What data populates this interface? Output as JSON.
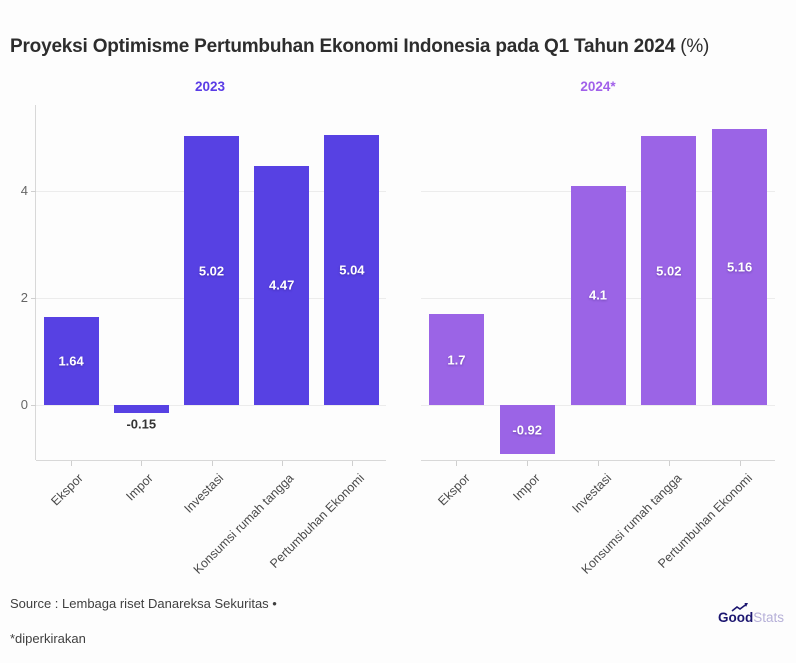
{
  "title": {
    "main": "Proyeksi Optimisme Pertumbuhan Ekonomi Indonesia pada Q1 Tahun 2024",
    "suffix": " (%)"
  },
  "source_line": "Source : Lembaga riset Danareksa Sekuritas •",
  "footnote": "*diperkirakan",
  "logo": {
    "bold": "Good",
    "light": "Stats"
  },
  "colors": {
    "bar_2023": "#5741e3",
    "bar_2024": "#9b64e6",
    "panel_title_2023": "#5a3ce6",
    "panel_title_2024": "#a160ea",
    "grid": "#ececec",
    "axis": "#d8d8d8",
    "value_label_inside": "#ffffff",
    "value_label_outside": "#333333",
    "logo_navy": "#1c1670",
    "logo_light": "#b6b0d8"
  },
  "chart_data": [
    {
      "type": "bar",
      "title": "2023",
      "categories": [
        "Ekspor",
        "Impor",
        "Investasi",
        "Konsumsi rumah tangga",
        "Pertumbuhan Ekonomi"
      ],
      "values": [
        1.64,
        -0.15,
        5.02,
        4.47,
        5.04
      ],
      "bar_color": "#5741e3",
      "title_color": "#5a3ce6",
      "yticks": [
        0,
        2,
        4
      ],
      "ylim": [
        -1.03,
        5.61
      ],
      "grid": true,
      "show_y_labels": true,
      "xlabel": "",
      "ylabel": ""
    },
    {
      "type": "bar",
      "title": "2024*",
      "categories": [
        "Ekspor",
        "Impor",
        "Investasi",
        "Konsumsi rumah tangga",
        "Pertumbuhan Ekonomi"
      ],
      "values": [
        1.7,
        -0.92,
        4.1,
        5.02,
        5.16
      ],
      "bar_color": "#9b64e6",
      "title_color": "#a160ea",
      "yticks": [
        0,
        2,
        4
      ],
      "ylim": [
        -1.03,
        5.61
      ],
      "grid": true,
      "show_y_labels": false,
      "xlabel": "",
      "ylabel": ""
    }
  ]
}
